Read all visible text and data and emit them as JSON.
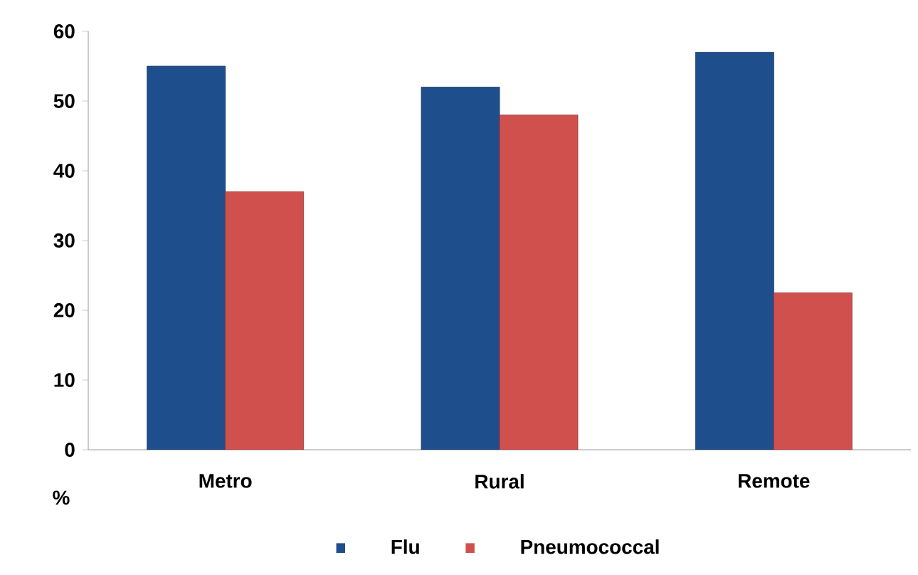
{
  "chart_data": {
    "type": "bar",
    "ylabel": "%",
    "categories": [
      "Metro",
      "Rural",
      "Remote"
    ],
    "series": [
      {
        "name": "Flu",
        "color": "#1f4e8c",
        "values": [
          55,
          52,
          57
        ]
      },
      {
        "name": "Pneumococcal",
        "color": "#d0504e",
        "values": [
          37,
          48,
          22.5
        ]
      }
    ],
    "ylim": [
      0,
      60
    ],
    "yticks": [
      0,
      10,
      20,
      30,
      40,
      50,
      60
    ],
    "legend": "bottom"
  }
}
